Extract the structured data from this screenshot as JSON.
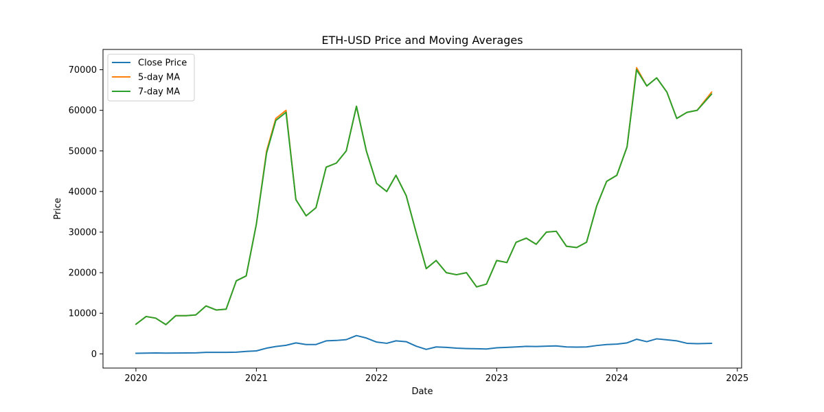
{
  "chart_data": {
    "type": "line",
    "title": "ETH-USD Price and Moving Averages",
    "xlabel": "Date",
    "ylabel": "Price",
    "xlim": [
      "2019-09-23",
      "2025-01-14"
    ],
    "ylim": [
      -3500,
      75000
    ],
    "x_ticks": [
      "2020-01-01",
      "2021-01-01",
      "2022-01-01",
      "2023-01-01",
      "2024-01-01",
      "2025-01-01"
    ],
    "x_tick_labels": [
      "2020",
      "2021",
      "2022",
      "2023",
      "2024",
      "2025"
    ],
    "y_ticks": [
      0,
      10000,
      20000,
      30000,
      40000,
      50000,
      60000,
      70000
    ],
    "y_tick_labels": [
      "0",
      "10000",
      "20000",
      "30000",
      "40000",
      "50000",
      "60000",
      "70000"
    ],
    "legend_position": "top-left",
    "grid": false,
    "x": [
      "2020-01-01",
      "2020-02-01",
      "2020-03-01",
      "2020-04-01",
      "2020-05-01",
      "2020-06-01",
      "2020-07-01",
      "2020-08-01",
      "2020-09-01",
      "2020-10-01",
      "2020-11-01",
      "2020-12-01",
      "2021-01-01",
      "2021-02-01",
      "2021-03-01",
      "2021-04-01",
      "2021-05-01",
      "2021-06-01",
      "2021-07-01",
      "2021-08-01",
      "2021-09-01",
      "2021-10-01",
      "2021-11-01",
      "2021-12-01",
      "2022-01-01",
      "2022-02-01",
      "2022-03-01",
      "2022-04-01",
      "2022-05-01",
      "2022-06-01",
      "2022-07-01",
      "2022-08-01",
      "2022-09-01",
      "2022-10-01",
      "2022-11-01",
      "2022-12-01",
      "2023-01-01",
      "2023-02-01",
      "2023-03-01",
      "2023-04-01",
      "2023-05-01",
      "2023-06-01",
      "2023-07-01",
      "2023-08-01",
      "2023-09-01",
      "2023-10-01",
      "2023-11-01",
      "2023-12-01",
      "2024-01-01",
      "2024-02-01",
      "2024-03-01",
      "2024-04-01",
      "2024-05-01",
      "2024-06-01",
      "2024-07-01",
      "2024-08-01",
      "2024-09-01",
      "2024-10-15"
    ],
    "series": [
      {
        "name": "Close Price",
        "color": "#1f77b4",
        "values": [
          130,
          180,
          230,
          170,
          200,
          230,
          240,
          380,
          370,
          370,
          420,
          600,
          730,
          1400,
          1800,
          2100,
          2700,
          2300,
          2300,
          3200,
          3300,
          3500,
          4500,
          3900,
          2900,
          2600,
          3200,
          3000,
          1900,
          1100,
          1700,
          1600,
          1400,
          1300,
          1250,
          1200,
          1500,
          1600,
          1700,
          1850,
          1800,
          1900,
          1950,
          1700,
          1650,
          1700,
          2050,
          2300,
          2400,
          2700,
          3600,
          3000,
          3700,
          3450,
          3200,
          2600,
          2500,
          2600
        ]
      },
      {
        "name": "5-day MA",
        "color": "#ff7f0e",
        "values": [
          7300,
          9200,
          8800,
          7200,
          9400,
          9400,
          9600,
          11800,
          10800,
          11000,
          18000,
          19200,
          32000,
          50000,
          58000,
          60000,
          38000,
          34000,
          36000,
          46000,
          47000,
          50000,
          61000,
          50000,
          42000,
          40000,
          44000,
          39000,
          30000,
          21000,
          23000,
          20000,
          19500,
          20000,
          16500,
          17200,
          23000,
          22500,
          27500,
          28500,
          27000,
          30000,
          30200,
          26500,
          26200,
          27500,
          36500,
          42500,
          44000,
          51000,
          70500,
          66000,
          68000,
          64500,
          58000,
          59500,
          60000,
          64500
        ]
      },
      {
        "name": "7-day MA",
        "color": "#2ca02c",
        "values": [
          7300,
          9200,
          8800,
          7200,
          9400,
          9400,
          9600,
          11800,
          10800,
          11000,
          18000,
          19200,
          32000,
          49500,
          57500,
          59500,
          38000,
          34000,
          36000,
          46000,
          47000,
          50000,
          61000,
          50000,
          42000,
          40000,
          44000,
          39000,
          30000,
          21000,
          23000,
          20000,
          19500,
          20000,
          16500,
          17200,
          23000,
          22500,
          27500,
          28500,
          27000,
          30000,
          30200,
          26500,
          26200,
          27500,
          36500,
          42500,
          44000,
          51000,
          70000,
          66000,
          68000,
          64500,
          58000,
          59500,
          60000,
          64000
        ]
      }
    ]
  }
}
